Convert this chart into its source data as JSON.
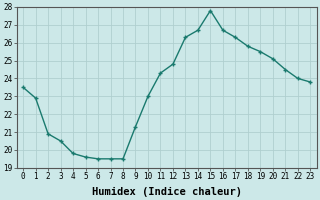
{
  "x": [
    0,
    1,
    2,
    3,
    4,
    5,
    6,
    7,
    8,
    9,
    10,
    11,
    12,
    13,
    14,
    15,
    16,
    17,
    18,
    19,
    20,
    21,
    22,
    23
  ],
  "y": [
    23.5,
    22.9,
    20.9,
    20.5,
    19.8,
    19.6,
    19.5,
    19.5,
    19.5,
    21.3,
    23.0,
    24.3,
    24.8,
    26.3,
    26.7,
    27.8,
    26.7,
    26.3,
    25.8,
    25.5,
    25.1,
    24.5,
    24.0,
    23.8
  ],
  "line_color": "#1a7a6e",
  "marker": "+",
  "marker_size": 3.5,
  "bg_color": "#cce8e8",
  "grid_color": "#b0cfcf",
  "xlabel": "Humidex (Indice chaleur)",
  "xlim": [
    -0.5,
    23.5
  ],
  "ylim": [
    19,
    28
  ],
  "yticks": [
    19,
    20,
    21,
    22,
    23,
    24,
    25,
    26,
    27,
    28
  ],
  "xticks": [
    0,
    1,
    2,
    3,
    4,
    5,
    6,
    7,
    8,
    9,
    10,
    11,
    12,
    13,
    14,
    15,
    16,
    17,
    18,
    19,
    20,
    21,
    22,
    23
  ],
  "xtick_labels": [
    "0",
    "1",
    "2",
    "3",
    "4",
    "5",
    "6",
    "7",
    "8",
    "9",
    "10",
    "11",
    "12",
    "13",
    "14",
    "15",
    "16",
    "17",
    "18",
    "19",
    "20",
    "21",
    "22",
    "23"
  ],
  "tick_fontsize": 5.5,
  "xlabel_fontsize": 7.5,
  "line_width": 1.0,
  "markeredgewidth": 1.0
}
